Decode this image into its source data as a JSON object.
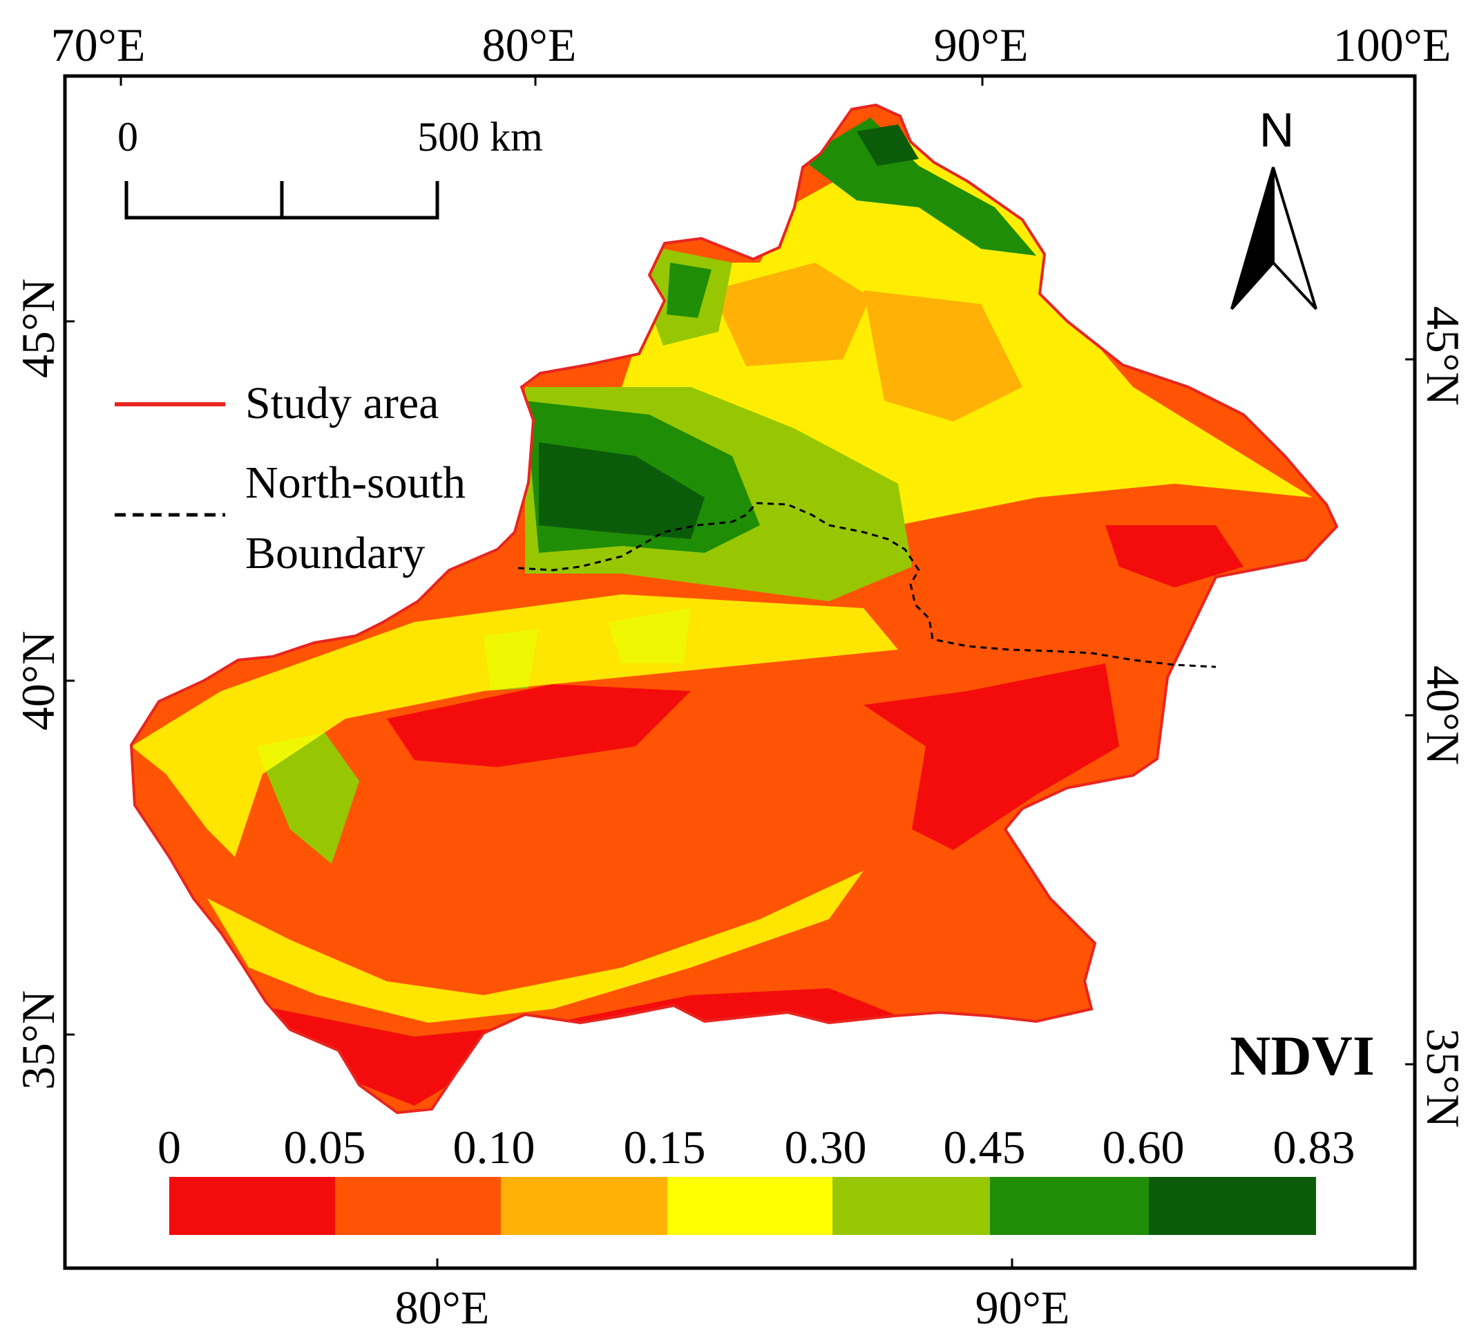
{
  "map": {
    "title": "NDVI",
    "top_axis_labels": [
      "70°E",
      "80°E",
      "90°E",
      "100°E"
    ],
    "bottom_axis_labels": [
      "80°E",
      "90°E"
    ],
    "left_axis_labels": [
      "45°N",
      "40°N",
      "35°N"
    ],
    "right_axis_labels": [
      "45°N",
      "40°N",
      "35°N"
    ]
  },
  "scale_bar": {
    "start_label": "0",
    "end_label": "500 km"
  },
  "north_arrow": {
    "label": "N"
  },
  "legend": {
    "study_area_label": "Study area",
    "boundary_label_line1": "North-south",
    "boundary_label_line2": "Boundary",
    "study_area_color": "#e8251f"
  },
  "colorbar": {
    "tick_labels": [
      "0",
      "0.05",
      "0.10",
      "0.15",
      "0.30",
      "0.45",
      "0.60",
      "0.83"
    ],
    "colors": [
      "#f40c0c",
      "#fe5404",
      "#ffb205",
      "#ffff02",
      "#97c702",
      "#1f8d06",
      "#0b5c0a"
    ]
  }
}
